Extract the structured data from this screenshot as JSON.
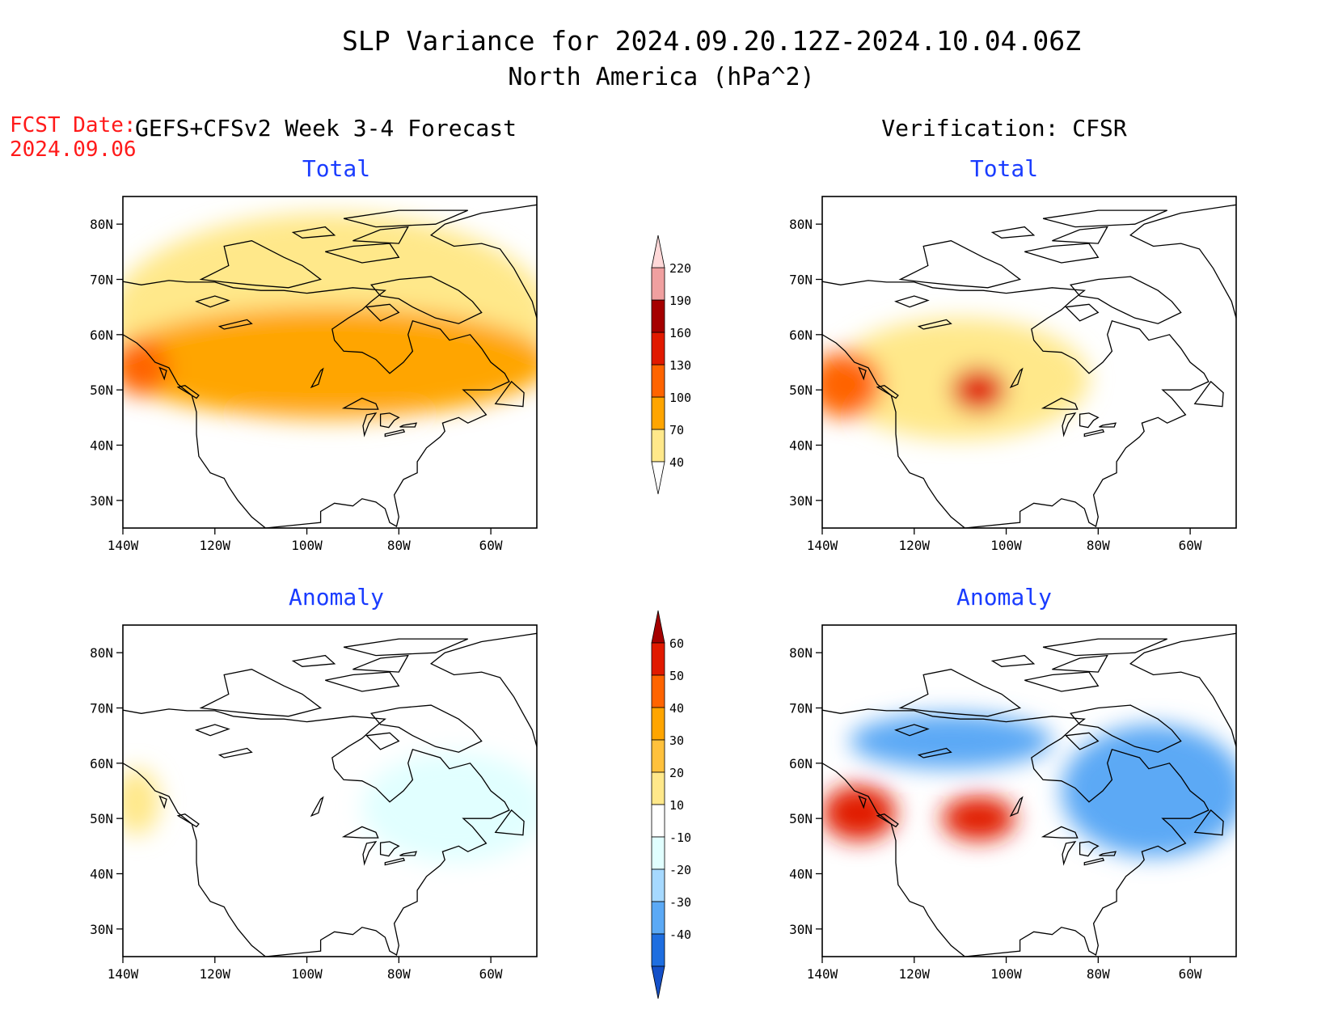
{
  "title": {
    "line1": "SLP Variance for 2024.09.20.12Z-2024.10.04.06Z",
    "line2": "North America (hPa^2)"
  },
  "fcst_date": {
    "label": "FCST Date:",
    "value": "2024.09.06"
  },
  "columns": {
    "left": "GEFS+CFSv2 Week 3-4 Forecast",
    "right": "Verification: CFSR"
  },
  "panel_titles": {
    "total": "Total",
    "anomaly": "Anomaly"
  },
  "axes": {
    "lat_labels": [
      "80N",
      "70N",
      "60N",
      "50N",
      "40N",
      "30N"
    ],
    "lat_values": [
      80,
      70,
      60,
      50,
      40,
      30
    ],
    "lon_labels": [
      "140W",
      "120W",
      "100W",
      "80W",
      "60W"
    ],
    "lon_values": [
      -140,
      -120,
      -100,
      -80,
      -60
    ],
    "lon_range": [
      -140,
      -50
    ],
    "lat_range": [
      25,
      85
    ]
  },
  "colorbars": {
    "total": {
      "levels": [
        "40",
        "70",
        "100",
        "130",
        "160",
        "190",
        "220"
      ],
      "colors": [
        "#ffe88a",
        "#ffa500",
        "#ff6400",
        "#e11a00",
        "#a50000",
        "#f0a0a0",
        "#ffd8d8"
      ]
    },
    "anomaly": {
      "levels": [
        "60",
        "50",
        "40",
        "30",
        "20",
        "10",
        "-10",
        "-20",
        "-30",
        "-40"
      ],
      "colors": [
        "#a50000",
        "#e11a00",
        "#ff6400",
        "#ffa500",
        "#ffc13c",
        "#ffe88a",
        "#ffffff",
        "#e1ffff",
        "#a6d9ff",
        "#5ba9f5",
        "#1e6ee0",
        "#1450c8"
      ]
    }
  },
  "chart_data": [
    {
      "type": "heatmap",
      "title": "Total",
      "column": "GEFS+CFSv2 Week 3-4 Forecast",
      "units": "hPa^2",
      "blobs": [
        {
          "lon": -95,
          "lat": 63,
          "rlon": 48,
          "rlat": 19,
          "value": 55
        },
        {
          "lon": -95,
          "lat": 55,
          "rlon": 48,
          "rlat": 10,
          "value": 85
        },
        {
          "lon": -136,
          "lat": 54,
          "rlon": 6,
          "rlat": 5,
          "value": 105
        }
      ]
    },
    {
      "type": "heatmap",
      "title": "Total",
      "column": "Verification: CFSR",
      "units": "hPa^2",
      "blobs": [
        {
          "lon": -110,
          "lat": 52,
          "rlon": 28,
          "rlat": 11,
          "value": 55
        },
        {
          "lon": -135,
          "lat": 51,
          "rlon": 8,
          "rlat": 6,
          "value": 115
        },
        {
          "lon": -106,
          "lat": 50,
          "rlon": 6,
          "rlat": 4,
          "value": 145
        }
      ]
    },
    {
      "type": "heatmap",
      "title": "Anomaly",
      "column": "GEFS+CFSv2 Week 3-4 Forecast",
      "units": "hPa^2",
      "blobs": [
        {
          "lon": -68,
          "lat": 52,
          "rlon": 20,
          "rlat": 10,
          "value": -15
        },
        {
          "lon": -137,
          "lat": 53,
          "rlon": 5,
          "rlat": 6,
          "value": 15
        }
      ]
    },
    {
      "type": "heatmap",
      "title": "Anomaly",
      "column": "Verification: CFSR",
      "units": "hPa^2",
      "blobs": [
        {
          "lon": -112,
          "lat": 64,
          "rlon": 22,
          "rlat": 5,
          "value": -30
        },
        {
          "lon": -68,
          "lat": 55,
          "rlon": 20,
          "rlat": 12,
          "value": -35
        },
        {
          "lon": -106,
          "lat": 50,
          "rlon": 8,
          "rlat": 4,
          "value": 55
        },
        {
          "lon": -132,
          "lat": 51,
          "rlon": 8,
          "rlat": 5,
          "value": 50
        }
      ]
    }
  ]
}
